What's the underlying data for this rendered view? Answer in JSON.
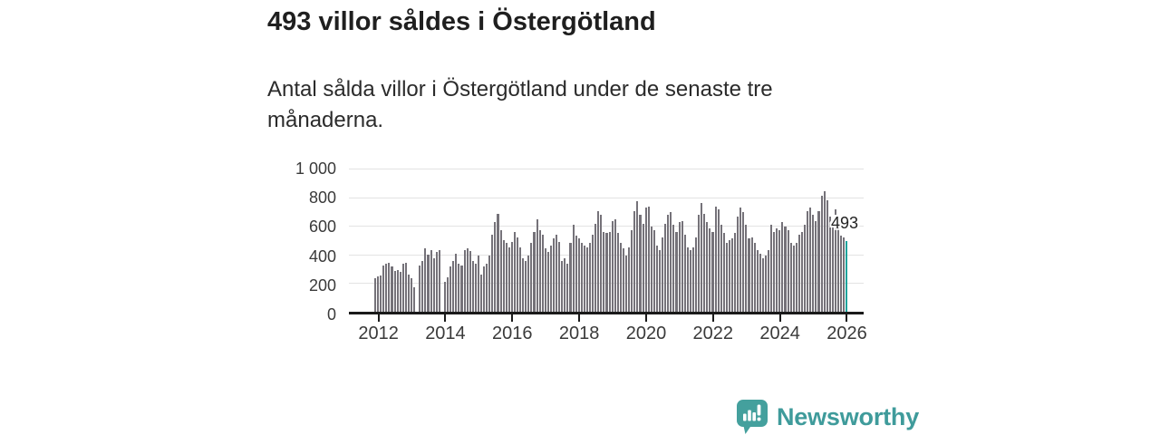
{
  "header": {
    "title": "493 villor såldes i Östergötland",
    "subtitle": "Antal sålda villor i Östergötland under de senaste tre månaderna."
  },
  "chart_data": {
    "type": "bar",
    "title": "493 villor såldes i Östergötland",
    "description": "Antal sålda villor i Östergötland under de senaste tre månaderna.",
    "frequency": "monthly",
    "x_start": "2011-12",
    "x_end": "2026-01",
    "ylim": [
      0,
      1000
    ],
    "grid": true,
    "bar_color": "#757279",
    "gridline_color": "#e3e3e3",
    "axis_color": "#1a1a1a",
    "y_axis": {
      "ticks": [
        {
          "label": "1 000",
          "value": 1000
        },
        {
          "label": "800",
          "value": 800
        },
        {
          "label": "600",
          "value": 600
        },
        {
          "label": "400",
          "value": 400
        },
        {
          "label": "200",
          "value": 200
        },
        {
          "label": "0",
          "value": 0
        }
      ]
    },
    "x_axis": {
      "ticks": [
        {
          "label": "2012",
          "index": 1
        },
        {
          "label": "2014",
          "index": 25
        },
        {
          "label": "2016",
          "index": 49
        },
        {
          "label": "2018",
          "index": 73
        },
        {
          "label": "2020",
          "index": 97
        },
        {
          "label": "2022",
          "index": 121
        },
        {
          "label": "2024",
          "index": 145
        },
        {
          "label": "2026",
          "index": 169
        }
      ]
    },
    "highlight": {
      "index": 169,
      "value": 493,
      "label": "493",
      "color": "#1ba39c"
    },
    "values": [
      235,
      245,
      255,
      325,
      335,
      340,
      315,
      285,
      290,
      280,
      335,
      340,
      260,
      235,
      170,
      0,
      325,
      355,
      440,
      400,
      430,
      375,
      420,
      430,
      0,
      210,
      240,
      315,
      355,
      405,
      335,
      325,
      430,
      440,
      425,
      355,
      335,
      395,
      260,
      315,
      335,
      395,
      540,
      625,
      685,
      570,
      500,
      480,
      450,
      490,
      560,
      520,
      450,
      375,
      355,
      395,
      480,
      560,
      645,
      570,
      540,
      440,
      415,
      460,
      510,
      540,
      490,
      355,
      375,
      335,
      480,
      605,
      530,
      510,
      480,
      460,
      450,
      480,
      540,
      615,
      705,
      675,
      560,
      550,
      560,
      635,
      645,
      550,
      480,
      440,
      395,
      450,
      570,
      705,
      770,
      675,
      615,
      725,
      735,
      595,
      570,
      460,
      430,
      520,
      615,
      675,
      695,
      605,
      560,
      625,
      635,
      540,
      450,
      430,
      450,
      520,
      675,
      760,
      685,
      625,
      585,
      560,
      735,
      715,
      605,
      550,
      480,
      500,
      510,
      550,
      665,
      725,
      695,
      605,
      510,
      520,
      480,
      430,
      405,
      375,
      395,
      430,
      605,
      560,
      585,
      570,
      624,
      595,
      570,
      480,
      460,
      480,
      540,
      560,
      605,
      705,
      725,
      675,
      635,
      705,
      810,
      840,
      780,
      665,
      645,
      715,
      590,
      530,
      520,
      493
    ]
  },
  "branding": {
    "logo_text": "Newsworthy",
    "logo_color": "#3f9b9b",
    "icon_color": "#44a09d"
  }
}
